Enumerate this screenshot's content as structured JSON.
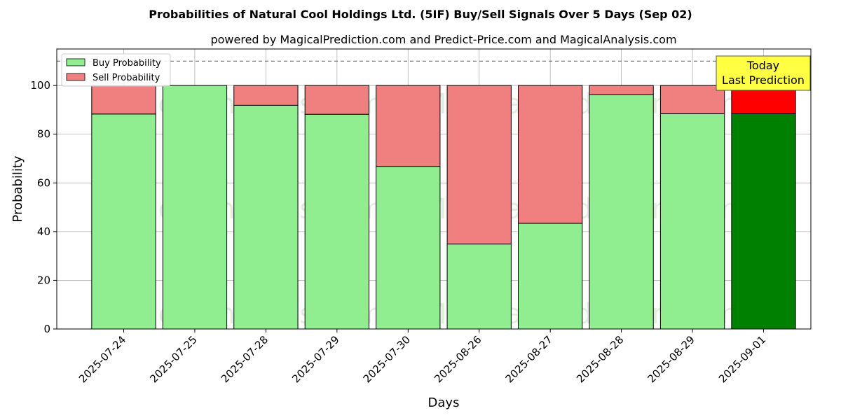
{
  "chart_data": {
    "type": "bar",
    "stacked": true,
    "title": "Probabilities of Natural Cool Holdings Ltd. (5IF) Buy/Sell Signals Over 5 Days (Sep 02)",
    "subtitle": "powered by MagicalPrediction.com and Predict-Price.com and MagicalAnalysis.com",
    "xlabel": "Days",
    "ylabel": "Probability",
    "ylim": [
      0,
      115
    ],
    "yticks": [
      0,
      20,
      40,
      60,
      80,
      100
    ],
    "grid": true,
    "legend_position": "top-left",
    "reference_line": 110,
    "categories": [
      "2025-07-24",
      "2025-07-25",
      "2025-07-28",
      "2025-07-29",
      "2025-07-30",
      "2025-08-26",
      "2025-08-27",
      "2025-08-28",
      "2025-08-29",
      "2025-09-01"
    ],
    "series": [
      {
        "name": "Buy Probability",
        "values": [
          88.3,
          100,
          91.9,
          88.2,
          66.8,
          34.9,
          43.4,
          96.2,
          88.4,
          88.4
        ],
        "color": "#90ee90",
        "highlight_color": "#008000"
      },
      {
        "name": "Sell Probability",
        "values": [
          11.7,
          0,
          8.1,
          11.8,
          33.2,
          65.1,
          56.6,
          3.8,
          11.6,
          11.6
        ],
        "color": "#f08080",
        "highlight_color": "#ff0000"
      }
    ],
    "highlight_index": 9,
    "annotation": {
      "line1": "Today",
      "line2": "Last Prediction",
      "color": "#ffff44"
    },
    "watermarks": [
      "MagicalAnalysis.com",
      "MagicalPrediction.com"
    ]
  }
}
